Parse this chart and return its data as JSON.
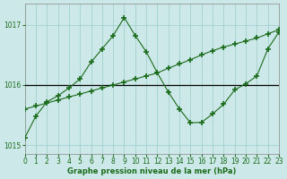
{
  "bg_color": "#cce8e8",
  "grid_color": "#99cccc",
  "line_color": "#1a6b1a",
  "hline_color": "#000000",
  "xlabel": "Graphe pression niveau de la mer (hPa)",
  "xlim": [
    0,
    23
  ],
  "ylim": [
    1014.85,
    1017.35
  ],
  "yticks": [
    1015,
    1016,
    1017
  ],
  "xticks": [
    0,
    1,
    2,
    3,
    4,
    5,
    6,
    7,
    8,
    9,
    10,
    11,
    12,
    13,
    14,
    15,
    16,
    17,
    18,
    19,
    20,
    21,
    22,
    23
  ],
  "hline_y": 1016.0,
  "series_straight_x": [
    0,
    1,
    2,
    3,
    4,
    5,
    6,
    7,
    8,
    9,
    10,
    11,
    12,
    13,
    14,
    15,
    16,
    17,
    18,
    19,
    20,
    21,
    22,
    23
  ],
  "series_straight_y": [
    1015.6,
    1015.65,
    1015.7,
    1015.75,
    1015.8,
    1015.85,
    1015.9,
    1015.95,
    1016.0,
    1016.05,
    1016.1,
    1016.15,
    1016.2,
    1016.28,
    1016.35,
    1016.42,
    1016.5,
    1016.57,
    1016.63,
    1016.68,
    1016.73,
    1016.78,
    1016.85,
    1016.92
  ],
  "series_peak_x": [
    0,
    1,
    2,
    3,
    4,
    5,
    6,
    7,
    8,
    9,
    10,
    11,
    12,
    13,
    14,
    15,
    16,
    17,
    18,
    19,
    20,
    21,
    22,
    23
  ],
  "series_peak_y": [
    1015.12,
    1015.48,
    1015.72,
    1015.82,
    1015.95,
    1016.1,
    1016.38,
    1016.6,
    1016.82,
    1017.12,
    1016.82,
    1016.55,
    1016.2,
    1015.88,
    1015.6,
    1015.37,
    1015.38,
    1015.52,
    1015.68,
    1015.92,
    1016.02,
    1016.15,
    1016.6,
    1016.88
  ]
}
